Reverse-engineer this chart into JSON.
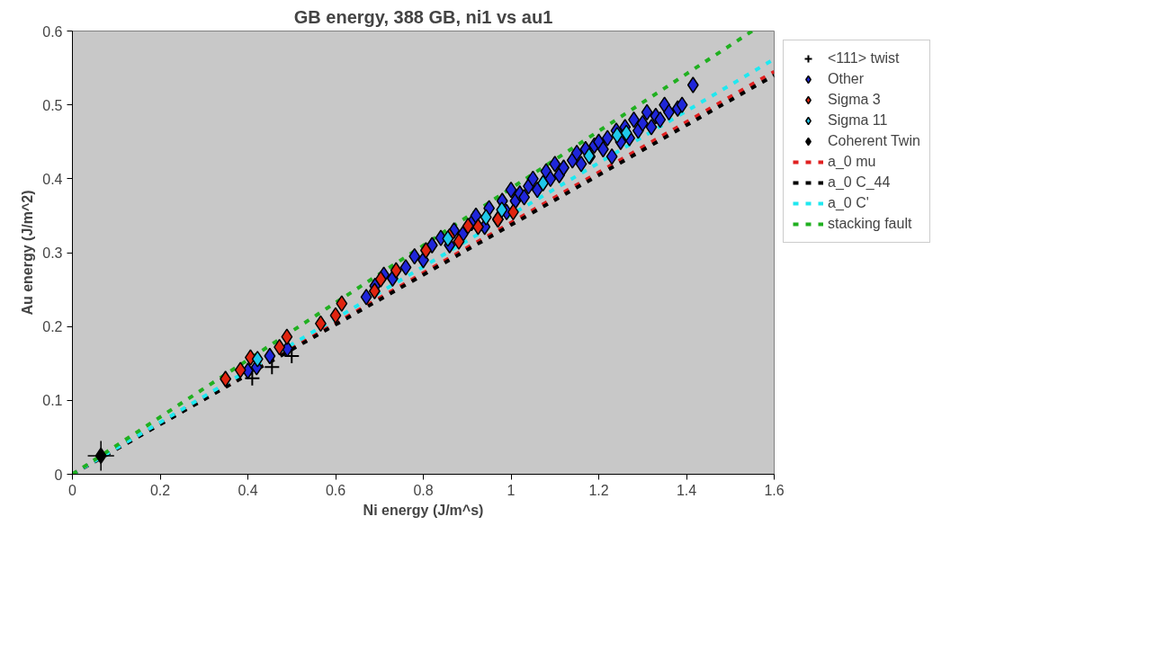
{
  "chart_data": {
    "type": "scatter",
    "title": "GB energy, 388 GB, ni1 vs au1",
    "xlabel": "Ni energy (J/m^s)",
    "ylabel": "Au energy (J/m^2)",
    "xlim": [
      0,
      1.6
    ],
    "ylim": [
      0,
      0.6
    ],
    "xticks": [
      0,
      0.2,
      0.4,
      0.6,
      0.8,
      1,
      1.2,
      1.4,
      1.6
    ],
    "yticks": [
      0,
      0.1,
      0.2,
      0.3,
      0.4,
      0.5,
      0.6
    ],
    "grid": false,
    "legend": "right",
    "series": [
      {
        "name": "<111> twist",
        "color": "#000000",
        "marker": "cross",
        "x": [
          0.41,
          0.455,
          0.5
        ],
        "values": [
          0.13,
          0.145,
          0.16
        ]
      },
      {
        "name": "Other",
        "color": "#1f26d9",
        "marker": "diamond",
        "x": [
          0.4,
          0.42,
          0.45,
          0.49,
          0.67,
          0.69,
          0.71,
          0.73,
          0.76,
          0.78,
          0.8,
          0.82,
          0.84,
          0.86,
          0.87,
          0.89,
          0.91,
          0.92,
          0.94,
          0.95,
          0.97,
          0.98,
          0.99,
          1.0,
          1.01,
          1.02,
          1.03,
          1.04,
          1.05,
          1.06,
          1.08,
          1.09,
          1.1,
          1.11,
          1.12,
          1.14,
          1.15,
          1.16,
          1.17,
          1.18,
          1.19,
          1.2,
          1.21,
          1.22,
          1.23,
          1.24,
          1.25,
          1.26,
          1.27,
          1.28,
          1.29,
          1.3,
          1.31,
          1.32,
          1.33,
          1.34,
          1.35,
          1.36,
          1.38,
          1.39,
          1.415
        ],
        "values": [
          0.14,
          0.145,
          0.16,
          0.17,
          0.24,
          0.255,
          0.27,
          0.265,
          0.28,
          0.295,
          0.29,
          0.31,
          0.32,
          0.31,
          0.33,
          0.325,
          0.34,
          0.35,
          0.335,
          0.36,
          0.345,
          0.37,
          0.355,
          0.385,
          0.37,
          0.38,
          0.375,
          0.39,
          0.4,
          0.385,
          0.41,
          0.4,
          0.42,
          0.405,
          0.415,
          0.425,
          0.435,
          0.42,
          0.44,
          0.43,
          0.445,
          0.45,
          0.44,
          0.455,
          0.43,
          0.465,
          0.45,
          0.47,
          0.455,
          0.48,
          0.465,
          0.475,
          0.49,
          0.47,
          0.485,
          0.48,
          0.5,
          0.49,
          0.495,
          0.5,
          0.527
        ]
      },
      {
        "name": "Sigma 3",
        "color": "#e0240f",
        "marker": "diamond",
        "x": [
          0.349,
          0.383,
          0.406,
          0.472,
          0.489,
          0.566,
          0.6,
          0.614,
          0.689,
          0.703,
          0.738,
          0.806,
          0.86,
          0.881,
          0.902,
          0.925,
          0.97,
          1.005
        ],
        "values": [
          0.129,
          0.141,
          0.158,
          0.172,
          0.186,
          0.204,
          0.215,
          0.231,
          0.248,
          0.264,
          0.276,
          0.303,
          0.322,
          0.315,
          0.336,
          0.335,
          0.345,
          0.355
        ]
      },
      {
        "name": "Sigma 11",
        "color": "#1fc8ea",
        "marker": "diamond",
        "x": [
          0.422,
          0.856,
          0.943,
          0.979,
          1.073,
          1.178,
          1.242,
          1.263
        ],
        "values": [
          0.156,
          0.319,
          0.348,
          0.358,
          0.394,
          0.431,
          0.459,
          0.462
        ]
      },
      {
        "name": "Coherent Twin",
        "color": "#000000",
        "marker": "diamond",
        "x": [
          0.065
        ],
        "values": [
          0.025
        ],
        "errors": [
          0.02
        ],
        "xerrors": [
          0.03
        ]
      },
      {
        "name": "a_0 mu",
        "type": "line",
        "marker": "none",
        "line_style": "dashed",
        "color": "#e02020",
        "x": [
          0,
          1.6
        ],
        "values": [
          0,
          0.545
        ]
      },
      {
        "name": "a_0 C_44",
        "type": "line",
        "marker": "none",
        "line_style": "dashed",
        "color": "#000000",
        "x": [
          0,
          1.6
        ],
        "values": [
          0,
          0.54
        ]
      },
      {
        "name": "a_0 C'",
        "type": "line",
        "marker": "none",
        "line_style": "dashed",
        "color": "#20e8f0",
        "x": [
          0,
          1.6
        ],
        "values": [
          0,
          0.562
        ]
      },
      {
        "name": "stacking fault",
        "type": "line",
        "marker": "none",
        "line_style": "dashed",
        "color": "#20b020",
        "x": [
          0,
          1.55
        ],
        "values": [
          0,
          0.6
        ]
      }
    ]
  }
}
